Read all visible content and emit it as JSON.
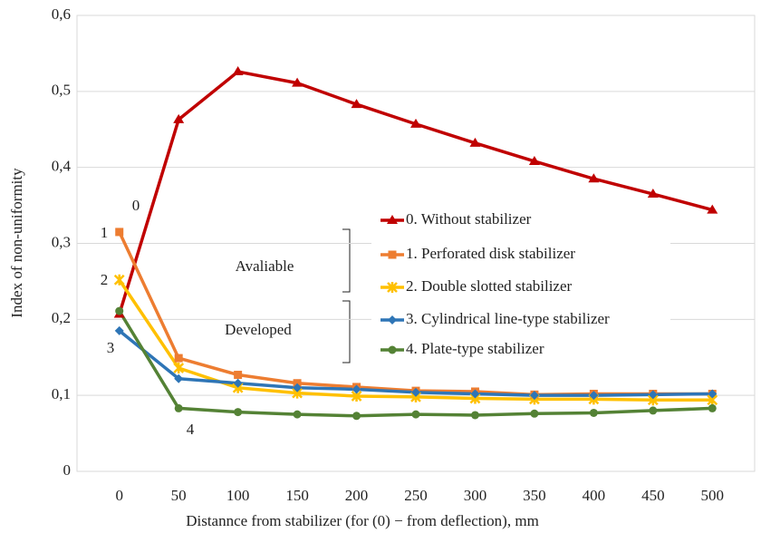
{
  "chart_data": {
    "type": "line",
    "xlabel": "Distannce from stabilizer (for (0) − from deflection), mm",
    "ylabel": "Index of non-uniformity",
    "categories": [
      "0",
      "50",
      "100",
      "150",
      "200",
      "250",
      "300",
      "350",
      "400",
      "450",
      "500"
    ],
    "series": [
      {
        "name": "0. Without stabilizer",
        "color": "#c00000",
        "marker": "triangle",
        "values": [
          0.207,
          0.463,
          0.526,
          0.511,
          0.483,
          0.457,
          0.432,
          0.408,
          0.385,
          0.365,
          0.344
        ]
      },
      {
        "name": "1. Perforated disk stabilizer",
        "color": "#ed7d31",
        "marker": "square",
        "values": [
          0.315,
          0.149,
          0.127,
          0.116,
          0.111,
          0.106,
          0.105,
          0.101,
          0.102,
          0.102,
          0.102
        ]
      },
      {
        "name": "2. Double slotted stabilizer",
        "color": "#ffc000",
        "marker": "star",
        "values": [
          0.252,
          0.136,
          0.11,
          0.103,
          0.099,
          0.098,
          0.096,
          0.095,
          0.095,
          0.094,
          0.094
        ]
      },
      {
        "name": "3. Cylindrical line-type stabilizer",
        "color": "#2e75b6",
        "marker": "diamond",
        "values": [
          0.185,
          0.122,
          0.116,
          0.11,
          0.108,
          0.104,
          0.102,
          0.1,
          0.1,
          0.101,
          0.102
        ]
      },
      {
        "name": "4. Plate-type stabilizer",
        "color": "#548235",
        "marker": "circle",
        "values": [
          0.211,
          0.083,
          0.078,
          0.075,
          0.073,
          0.075,
          0.074,
          0.076,
          0.077,
          0.08,
          0.083
        ]
      }
    ],
    "annotations": [
      "0",
      "1",
      "2",
      "3",
      "4",
      "Avaliable",
      "Developed"
    ],
    "ylim": [
      0,
      0.6
    ],
    "yticks": [
      0,
      {
        "value": 0.1,
        "label": "0,1"
      },
      {
        "value": 0.2,
        "label": "0,2"
      },
      {
        "value": 0.3,
        "label": "0,3"
      },
      {
        "value": 0.4,
        "label": "0,4"
      },
      {
        "value": 0.5,
        "label": "0,5"
      },
      {
        "value": 0.6,
        "label": "0,6"
      }
    ],
    "grid": true
  }
}
